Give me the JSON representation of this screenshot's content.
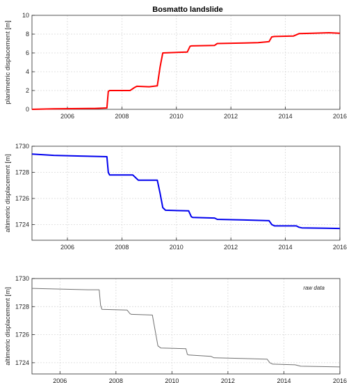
{
  "chart_data": [
    {
      "type": "line",
      "title": "Bosmatto landslide",
      "xlabel": "",
      "ylabel": "planimetric displacement [m]",
      "xlim": [
        2004.7,
        2016.0
      ],
      "ylim": [
        0,
        10
      ],
      "xticks": [
        2006,
        2008,
        2010,
        2012,
        2014,
        2016
      ],
      "yticks": [
        0,
        2,
        4,
        6,
        8,
        10
      ],
      "grid": true,
      "series": [
        {
          "color": "#ff0000",
          "x": [
            2004.7,
            2005.5,
            2007.0,
            2007.45,
            2007.5,
            2007.55,
            2008.3,
            2008.45,
            2008.55,
            2009.0,
            2009.3,
            2009.4,
            2009.5,
            2010.4,
            2010.5,
            2010.55,
            2011.4,
            2011.5,
            2012.5,
            2013.0,
            2013.4,
            2013.5,
            2013.6,
            2014.3,
            2014.5,
            2015.0,
            2015.6,
            2016.0
          ],
          "y": [
            0.0,
            0.05,
            0.1,
            0.15,
            1.9,
            2.0,
            2.0,
            2.3,
            2.45,
            2.4,
            2.5,
            4.5,
            6.0,
            6.1,
            6.7,
            6.75,
            6.8,
            7.0,
            7.05,
            7.1,
            7.2,
            7.7,
            7.75,
            7.8,
            8.05,
            8.1,
            8.15,
            8.1
          ]
        }
      ]
    },
    {
      "type": "line",
      "title": "",
      "xlabel": "",
      "ylabel": "altimetric displacement [m]",
      "xlim": [
        2004.7,
        2016.0
      ],
      "ylim": [
        1722.8,
        1730
      ],
      "xticks": [
        2006,
        2008,
        2010,
        2012,
        2014,
        2016
      ],
      "yticks": [
        1724,
        1726,
        1728,
        1730
      ],
      "grid": true,
      "series": [
        {
          "color": "#0000ee",
          "x": [
            2004.7,
            2005.5,
            2006.5,
            2007.45,
            2007.5,
            2007.55,
            2008.4,
            2008.5,
            2008.6,
            2009.3,
            2009.4,
            2009.5,
            2009.6,
            2010.45,
            2010.55,
            2010.6,
            2011.4,
            2011.5,
            2012.5,
            2013.4,
            2013.5,
            2013.6,
            2014.4,
            2014.5,
            2014.6,
            2015.5,
            2016.0
          ],
          "y": [
            1729.4,
            1729.3,
            1729.25,
            1729.2,
            1728.0,
            1727.8,
            1727.8,
            1727.6,
            1727.4,
            1727.4,
            1726.4,
            1725.3,
            1725.1,
            1725.05,
            1724.6,
            1724.55,
            1724.5,
            1724.4,
            1724.35,
            1724.3,
            1724.0,
            1723.9,
            1723.9,
            1723.8,
            1723.75,
            1723.72,
            1723.7
          ]
        }
      ]
    },
    {
      "type": "line",
      "title": "",
      "xlabel": "",
      "ylabel": "altimetric displacement [m]",
      "annotation": "raw data",
      "xlim": [
        2005.0,
        2016.0
      ],
      "ylim": [
        1723.2,
        1730
      ],
      "xticks": [
        2006,
        2008,
        2010,
        2012,
        2014,
        2016
      ],
      "yticks": [
        1724,
        1726,
        1728,
        1730
      ],
      "grid": true,
      "series": [
        {
          "color": "#707070",
          "x": [
            2005.0,
            2006.0,
            2007.0,
            2007.4,
            2007.45,
            2007.5,
            2008.4,
            2008.5,
            2008.55,
            2009.3,
            2009.4,
            2009.5,
            2009.6,
            2010.5,
            2010.55,
            2010.6,
            2011.4,
            2011.5,
            2012.5,
            2013.4,
            2013.5,
            2013.6,
            2014.4,
            2014.5,
            2014.6,
            2015.5,
            2016.0
          ],
          "y": [
            1729.3,
            1729.25,
            1729.2,
            1729.2,
            1728.1,
            1727.8,
            1727.75,
            1727.5,
            1727.45,
            1727.4,
            1726.3,
            1725.2,
            1725.05,
            1725.0,
            1724.6,
            1724.55,
            1724.45,
            1724.35,
            1724.3,
            1724.25,
            1724.0,
            1723.9,
            1723.85,
            1723.8,
            1723.75,
            1723.72,
            1723.7
          ]
        }
      ]
    }
  ]
}
